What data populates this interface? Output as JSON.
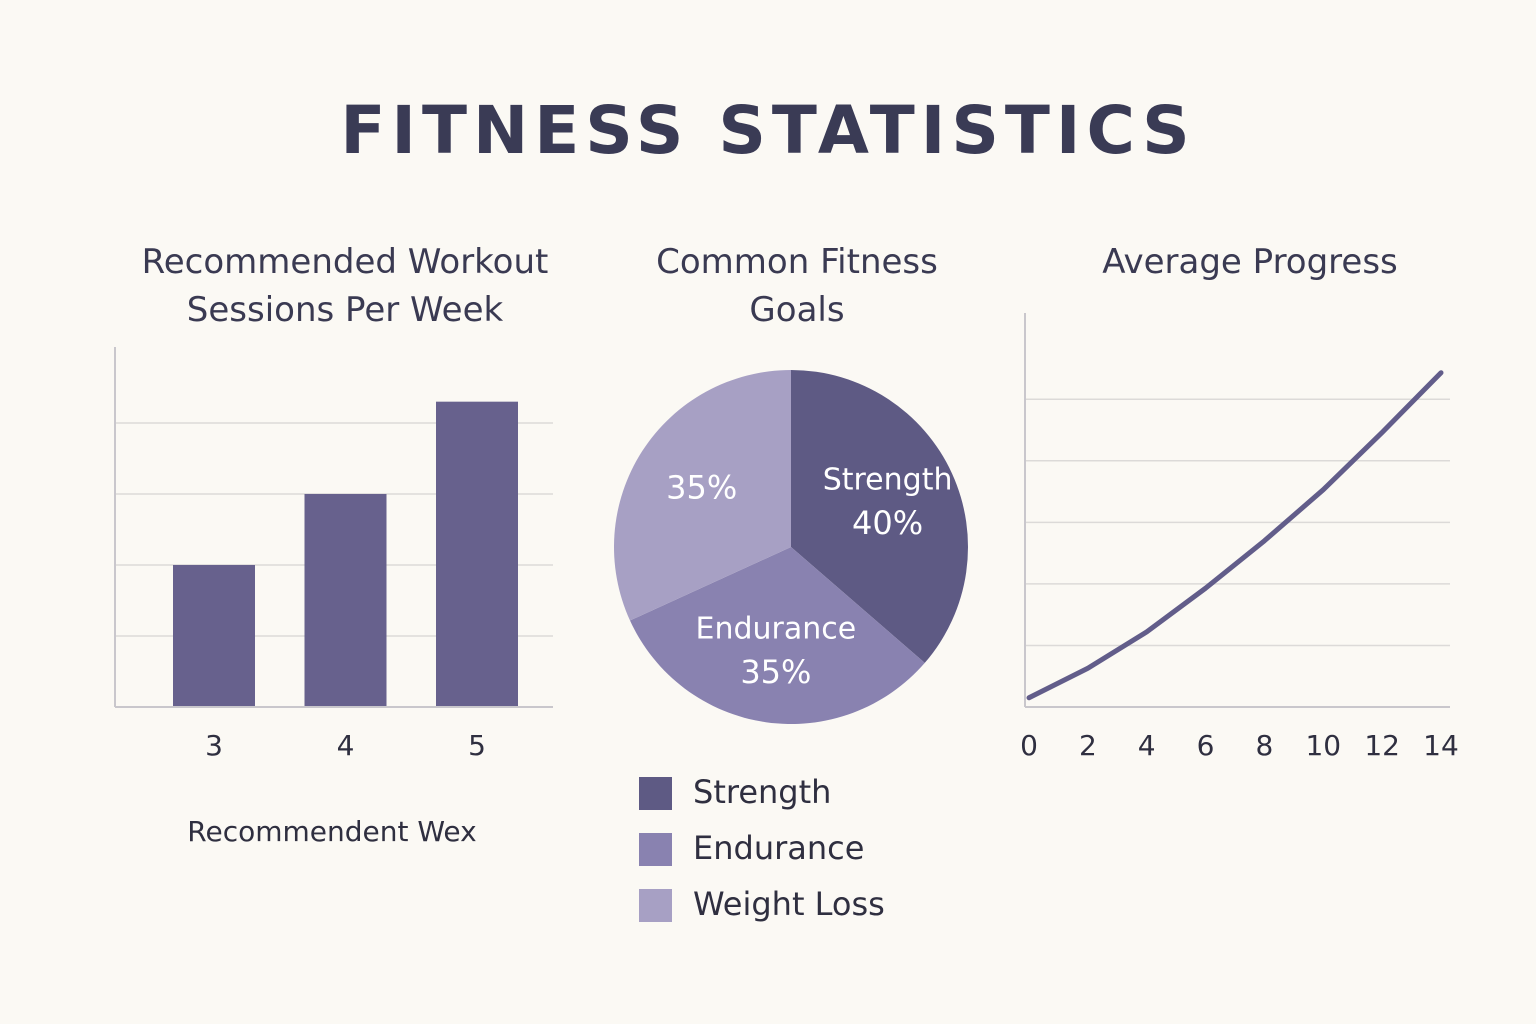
{
  "title": "FITNESS STATISTICS",
  "chart_data": [
    {
      "type": "bar",
      "title": "Recommended Workout Sessions Per Week",
      "categories": [
        "3",
        "4",
        "5"
      ],
      "values": [
        2,
        3,
        4.3
      ],
      "color": "#67618d",
      "ylim": [
        0,
        5.07
      ],
      "yticks": [
        1,
        2,
        3,
        4
      ],
      "grid": true,
      "x_label": "Recommendent Wex"
    },
    {
      "type": "pie",
      "title": "Common Fitness Goals",
      "categories": [
        "Strength",
        "Endurance",
        "Weight Loss"
      ],
      "values": [
        40,
        35,
        35
      ],
      "value_labels": [
        "40%",
        "35%",
        "35%"
      ],
      "colors": [
        "#5e5a84",
        "#8982b0",
        "#a7a0c4"
      ],
      "legend": "bottom"
    },
    {
      "type": "line",
      "title": "Average Progress",
      "x": [
        0,
        2,
        4,
        6,
        8,
        10,
        12,
        14
      ],
      "values": [
        0.15,
        0.63,
        1.22,
        1.93,
        2.7,
        3.53,
        4.46,
        5.43
      ],
      "color": "#625d8a",
      "xlim": [
        0,
        14
      ],
      "xticks": [
        0,
        2,
        4,
        6,
        8,
        10,
        12,
        14
      ],
      "ylim": [
        0,
        6.4
      ],
      "yticks": [
        1,
        2,
        3,
        4,
        5
      ],
      "grid": true
    }
  ]
}
